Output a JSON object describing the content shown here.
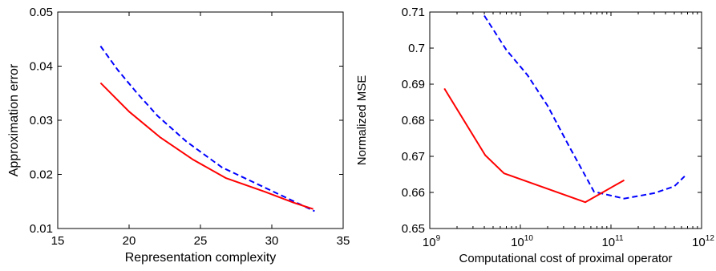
{
  "chart_data": [
    {
      "type": "line",
      "xlabel": "Representation complexity",
      "ylabel": "Approximation error",
      "xlim": [
        15,
        35
      ],
      "ylim": [
        0.01,
        0.05
      ],
      "xticks": [
        15,
        20,
        25,
        30,
        35
      ],
      "yticks": [
        0.01,
        0.02,
        0.03,
        0.04,
        0.05
      ],
      "xtick_labels": [
        "15",
        "20",
        "25",
        "30",
        "35"
      ],
      "ytick_labels": [
        "0.01",
        "0.02",
        "0.03",
        "0.04",
        "0.05"
      ],
      "xscale": "linear",
      "grid": false,
      "series": [
        {
          "color": "#0000ff",
          "style": "dashed",
          "x": [
            18.0,
            19.2,
            20.5,
            22.0,
            24.0,
            26.5,
            29.0,
            31.0,
            33.0
          ],
          "y": [
            0.0437,
            0.0393,
            0.0352,
            0.0308,
            0.0261,
            0.0213,
            0.0182,
            0.0157,
            0.0132
          ]
        },
        {
          "color": "#ff0000",
          "style": "solid",
          "x": [
            18.0,
            20.0,
            22.2,
            24.5,
            26.8,
            29.5,
            31.5,
            32.9
          ],
          "y": [
            0.0369,
            0.0316,
            0.0268,
            0.0227,
            0.0193,
            0.0168,
            0.0148,
            0.0136
          ]
        }
      ]
    },
    {
      "type": "line",
      "xlabel": "Computational cost of proximal operator",
      "ylabel": "Normalized MSE",
      "xlim": [
        1000000000.0,
        1000000000000.0
      ],
      "ylim": [
        0.65,
        0.71
      ],
      "xscale": "log",
      "xtick_bases": [
        "10",
        "10",
        "10",
        "10"
      ],
      "xtick_exponents": [
        "9",
        "10",
        "11",
        "12"
      ],
      "yticks": [
        0.65,
        0.66,
        0.67,
        0.68,
        0.69,
        0.7,
        0.71
      ],
      "ytick_labels": [
        "0.65",
        "0.66",
        "0.67",
        "0.68",
        "0.69",
        "0.7",
        "0.71"
      ],
      "grid": false,
      "series": [
        {
          "color": "#0000ff",
          "style": "dashed",
          "x": [
            4000000000.0,
            7000000000.0,
            12000000000.0,
            20000000000.0,
            35000000000.0,
            65000000000.0,
            140000000000.0,
            300000000000.0,
            500000000000.0,
            650000000000.0
          ],
          "y": [
            0.709,
            0.6995,
            0.6925,
            0.684,
            0.6725,
            0.6602,
            0.6583,
            0.6598,
            0.6617,
            0.6645
          ]
        },
        {
          "color": "#ff0000",
          "style": "solid",
          "x": [
            1450000000.0,
            4100000000.0,
            6600000000.0,
            52000000000.0,
            140000000000.0
          ],
          "y": [
            0.6888,
            0.6703,
            0.6653,
            0.6573,
            0.6634
          ]
        }
      ]
    }
  ]
}
